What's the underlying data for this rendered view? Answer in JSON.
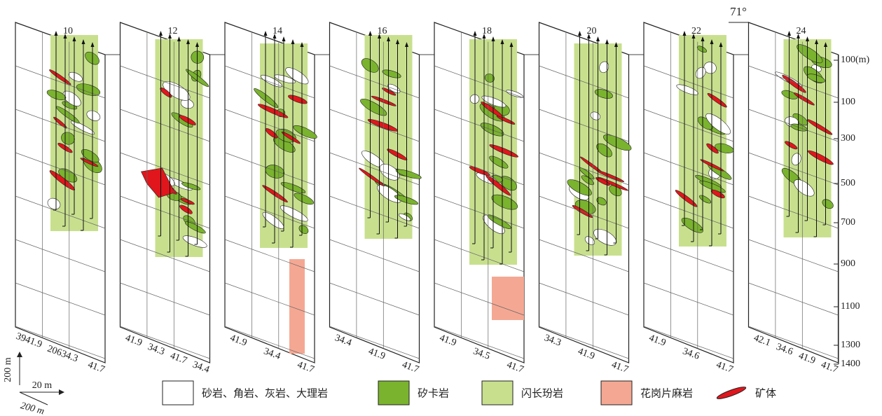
{
  "angle": "71°",
  "panels": [
    {
      "label": "10",
      "bottom_labels": [
        "3941.9",
        "20634.3",
        "41.7"
      ]
    },
    {
      "label": "12",
      "bottom_labels": [
        "41.9",
        "34.3",
        "41.7",
        "34.4"
      ]
    },
    {
      "label": "14",
      "bottom_labels": [
        "41.9",
        "34.4",
        "41.7"
      ]
    },
    {
      "label": "16",
      "bottom_labels": [
        "34.4",
        "41.9",
        "41.7"
      ]
    },
    {
      "label": "18",
      "bottom_labels": [
        "41.9",
        "34.5",
        "41.7"
      ]
    },
    {
      "label": "20",
      "bottom_labels": [
        "34.3",
        "41.9",
        "41.7"
      ]
    },
    {
      "label": "22",
      "bottom_labels": [
        "41.9",
        "34.6",
        "41.7"
      ]
    },
    {
      "label": "24",
      "bottom_labels": [
        "42.1",
        "34.6",
        "41.9",
        "41.7"
      ]
    }
  ],
  "depth_labels": [
    "100(m)",
    "100",
    "300",
    "500",
    "700",
    "900",
    "1100",
    "1300",
    "1400"
  ],
  "legend": [
    "砂岩、角岩、灰岩、大理岩",
    "矽卡岩",
    "闪长玢岩",
    "花岗片麻岩",
    "矿体"
  ],
  "scale": {
    "vertical": "200 m",
    "horizontal": "20 m",
    "depth": "200 m"
  }
}
